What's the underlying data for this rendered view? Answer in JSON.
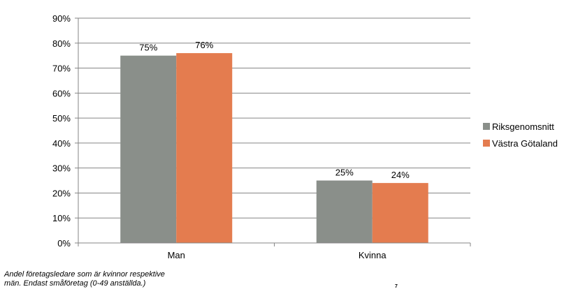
{
  "chart_data": {
    "type": "bar",
    "categories": [
      "Man",
      "Kvinna"
    ],
    "series": [
      {
        "name": "Riksgenomsnitt",
        "values": [
          75,
          25
        ],
        "labels": [
          "75%",
          "25%"
        ],
        "color": "#8a8f8a"
      },
      {
        "name": "Västra Götaland",
        "values": [
          76,
          24
        ],
        "labels": [
          "76%",
          "24%"
        ],
        "color": "#e47c4f"
      }
    ],
    "ylim": [
      0,
      90
    ],
    "yticks": [
      0,
      10,
      20,
      30,
      40,
      50,
      60,
      70,
      80,
      90
    ],
    "ytick_labels": [
      "0%",
      "10%",
      "20%",
      "30%",
      "40%",
      "50%",
      "60%",
      "70%",
      "80%",
      "90%"
    ],
    "grid": true,
    "legend_position": "right",
    "gridline_color": "#868686"
  },
  "footer": {
    "caption": "Andel företagsledare som är kvinnor respektive män. Endast småföretag (0-49 anställda.)",
    "page_number": "7"
  }
}
